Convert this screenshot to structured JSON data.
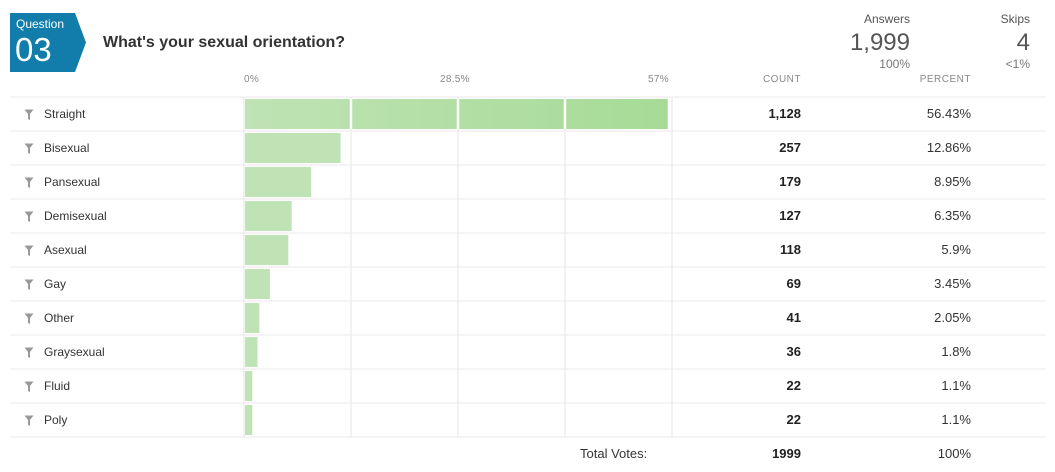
{
  "question": {
    "badge_label": "Question",
    "number": "03",
    "title": "What's your sexual orientation?"
  },
  "stats": {
    "answers_label": "Answers",
    "answers_value": "1,999",
    "answers_sub": "100%",
    "skips_label": "Skips",
    "skips_value": "4",
    "skips_sub": "<1%"
  },
  "columns": {
    "count": "COUNT",
    "percent": "PERCENT"
  },
  "ticks": [
    "0%",
    "28.5%",
    "57%"
  ],
  "rows": [
    {
      "label": "Straight",
      "count": "1,128",
      "percent": "56.43%"
    },
    {
      "label": "Bisexual",
      "count": "257",
      "percent": "12.86%"
    },
    {
      "label": "Pansexual",
      "count": "179",
      "percent": "8.95%"
    },
    {
      "label": "Demisexual",
      "count": "127",
      "percent": "6.35%"
    },
    {
      "label": "Asexual",
      "count": "118",
      "percent": "5.9%"
    },
    {
      "label": "Gay",
      "count": "69",
      "percent": "3.45%"
    },
    {
      "label": "Other",
      "count": "41",
      "percent": "2.05%"
    },
    {
      "label": "Graysexual",
      "count": "36",
      "percent": "1.8%"
    },
    {
      "label": "Fluid",
      "count": "22",
      "percent": "1.1%"
    },
    {
      "label": "Poly",
      "count": "22",
      "percent": "1.1%"
    }
  ],
  "total": {
    "label": "Total Votes:",
    "count": "1999",
    "percent": "100%"
  },
  "chart_data": {
    "type": "bar",
    "orientation": "horizontal",
    "categories": [
      "Straight",
      "Bisexual",
      "Pansexual",
      "Demisexual",
      "Asexual",
      "Gay",
      "Other",
      "Graysexual",
      "Fluid",
      "Poly"
    ],
    "values": [
      56.43,
      12.86,
      8.95,
      6.35,
      5.9,
      3.45,
      2.05,
      1.8,
      1.1,
      1.1
    ],
    "xlim": [
      0,
      57
    ],
    "grid": true,
    "colors": {
      "bar": "#bfe3b4",
      "bar_highlight": "#a6db96",
      "grid": "#e6e6e6",
      "badge": "#127daa"
    }
  }
}
